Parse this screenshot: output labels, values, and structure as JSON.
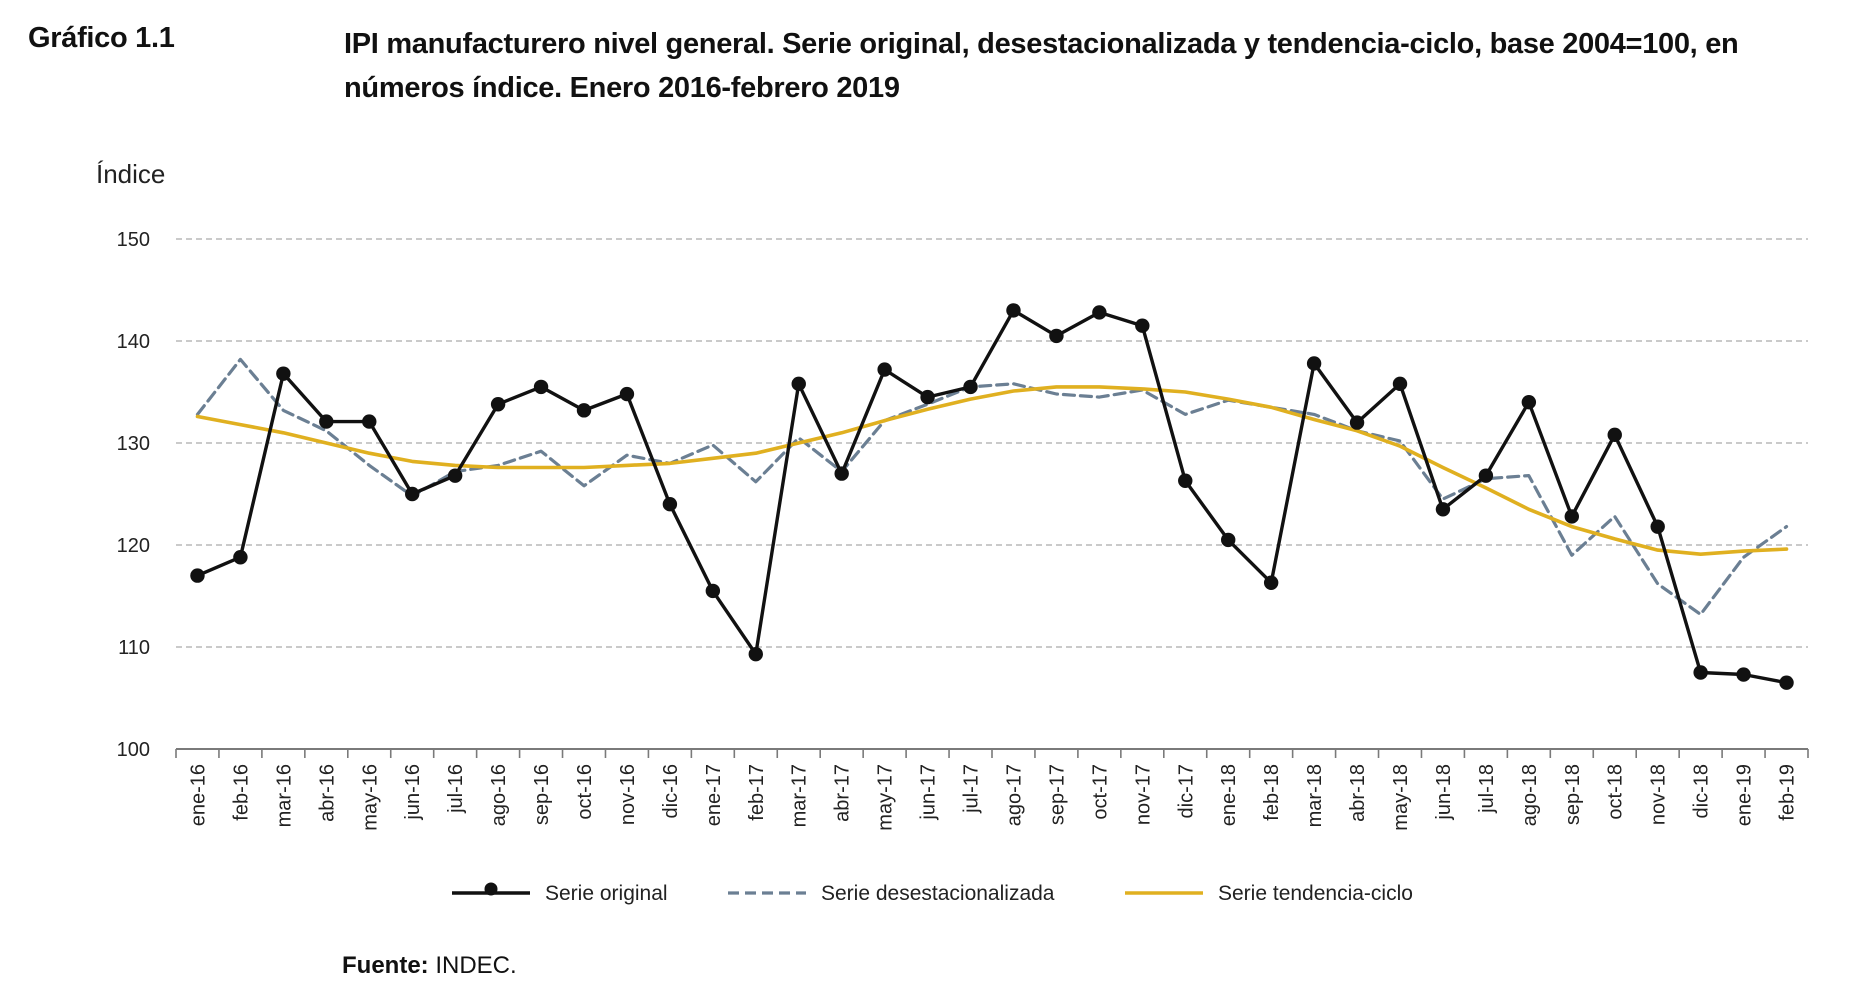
{
  "figure": {
    "label": "Gráfico 1.1",
    "title": "IPI manufacturero nivel general. Serie original, desestacionalizada y tendencia-ciclo, base 2004=100, en números índice. Enero 2016-febrero 2019",
    "source_label": "Fuente:",
    "source_value": "INDEC."
  },
  "chart_data": {
    "type": "line",
    "title": "IPI manufacturero nivel general. Serie original, desestacionalizada y tendencia-ciclo, base 2004=100, en números índice. Enero 2016-febrero 2019",
    "xlabel": "",
    "ylabel": "Índice",
    "ylim": [
      100,
      150
    ],
    "yticks": [
      100,
      110,
      120,
      130,
      140,
      150
    ],
    "grid": "horizontal-dashed",
    "legend_position": "bottom",
    "categories": [
      "ene-16",
      "feb-16",
      "mar-16",
      "abr-16",
      "may-16",
      "jun-16",
      "jul-16",
      "ago-16",
      "sep-16",
      "oct-16",
      "nov-16",
      "dic-16",
      "ene-17",
      "feb-17",
      "mar-17",
      "abr-17",
      "may-17",
      "jun-17",
      "jul-17",
      "ago-17",
      "sep-17",
      "oct-17",
      "nov-17",
      "dic-17",
      "ene-18",
      "feb-18",
      "mar-18",
      "abr-18",
      "may-18",
      "jun-18",
      "jul-18",
      "ago-18",
      "sep-18",
      "oct-18",
      "nov-18",
      "dic-18",
      "ene-19",
      "feb-19"
    ],
    "series": [
      {
        "name": "Serie original",
        "color": "#111111",
        "style": "solid-markers",
        "values": [
          117.0,
          118.8,
          136.8,
          132.1,
          132.1,
          125.0,
          126.8,
          133.8,
          135.5,
          133.2,
          134.8,
          124.0,
          115.5,
          109.3,
          135.8,
          127.0,
          137.2,
          134.5,
          135.5,
          143.0,
          140.5,
          142.8,
          141.5,
          126.3,
          120.5,
          116.3,
          137.8,
          132.0,
          135.8,
          123.5,
          126.8,
          134.0,
          122.8,
          130.8,
          121.8,
          107.5,
          107.3,
          106.5
        ]
      },
      {
        "name": "Serie desestacionalizada",
        "color": "#6b7f93",
        "style": "dashed",
        "values": [
          132.8,
          138.2,
          133.2,
          131.2,
          127.8,
          124.8,
          127.2,
          127.8,
          129.2,
          125.8,
          128.8,
          128.0,
          129.8,
          126.2,
          130.5,
          127.2,
          132.2,
          133.8,
          135.5,
          135.8,
          134.8,
          134.5,
          135.2,
          132.8,
          134.2,
          133.5,
          132.8,
          131.2,
          130.2,
          124.5,
          126.5,
          126.8,
          119.0,
          122.8,
          116.2,
          113.2,
          118.8,
          121.8
        ]
      },
      {
        "name": "Serie tendencia-ciclo",
        "color": "#e0b020",
        "style": "solid",
        "values": [
          132.6,
          131.8,
          131.0,
          130.0,
          129.0,
          128.2,
          127.8,
          127.6,
          127.6,
          127.6,
          127.8,
          128.0,
          128.5,
          129.0,
          130.0,
          131.0,
          132.2,
          133.3,
          134.3,
          135.1,
          135.5,
          135.5,
          135.3,
          135.0,
          134.3,
          133.5,
          132.3,
          131.2,
          129.7,
          127.6,
          125.6,
          123.5,
          121.8,
          120.6,
          119.5,
          119.1,
          119.4,
          119.6
        ]
      }
    ]
  }
}
